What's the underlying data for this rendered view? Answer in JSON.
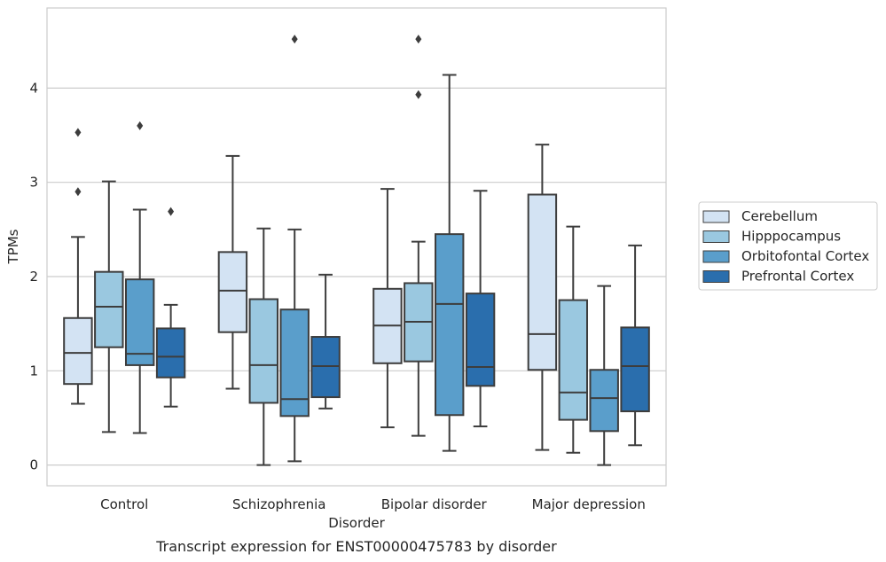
{
  "chart_data": {
    "type": "box",
    "caption": "Transcript expression for ENST00000475783 by disorder",
    "xlabel": "Disorder",
    "ylabel": "TPMs",
    "ylim": [
      -0.22,
      4.85
    ],
    "yticks": [
      "0",
      "1",
      "2",
      "3",
      "4"
    ],
    "grid": true,
    "legend_position": "right",
    "categories": [
      "Control",
      "Schizophrenia",
      "Bipolar disorder",
      "Major depression"
    ],
    "series": [
      {
        "name": "Cerebellum",
        "color": "#d3e3f3",
        "boxes": [
          {
            "whisker_low": 0.65,
            "q1": 0.86,
            "median": 1.19,
            "q3": 1.56,
            "whisker_high": 2.42,
            "outliers": [
              2.9,
              3.53
            ]
          },
          {
            "whisker_low": 0.81,
            "q1": 1.41,
            "median": 1.85,
            "q3": 2.26,
            "whisker_high": 3.28,
            "outliers": []
          },
          {
            "whisker_low": 0.4,
            "q1": 1.08,
            "median": 1.48,
            "q3": 1.87,
            "whisker_high": 2.93,
            "outliers": []
          },
          {
            "whisker_low": 0.16,
            "q1": 1.01,
            "median": 1.39,
            "q3": 2.87,
            "whisker_high": 3.4,
            "outliers": []
          }
        ]
      },
      {
        "name": "Hipppocampus",
        "color": "#9ac8e0",
        "boxes": [
          {
            "whisker_low": 0.35,
            "q1": 1.25,
            "median": 1.68,
            "q3": 2.05,
            "whisker_high": 3.01,
            "outliers": []
          },
          {
            "whisker_low": 0.0,
            "q1": 0.66,
            "median": 1.06,
            "q3": 1.76,
            "whisker_high": 2.51,
            "outliers": []
          },
          {
            "whisker_low": 0.31,
            "q1": 1.1,
            "median": 1.52,
            "q3": 1.93,
            "whisker_high": 2.37,
            "outliers": [
              3.93,
              4.52
            ]
          },
          {
            "whisker_low": 0.13,
            "q1": 0.48,
            "median": 0.77,
            "q3": 1.75,
            "whisker_high": 2.53,
            "outliers": []
          }
        ]
      },
      {
        "name": "Orbitofontal Cortex",
        "color": "#5a9ecb",
        "boxes": [
          {
            "whisker_low": 0.34,
            "q1": 1.06,
            "median": 1.18,
            "q3": 1.97,
            "whisker_high": 2.71,
            "outliers": [
              3.6
            ]
          },
          {
            "whisker_low": 0.04,
            "q1": 0.52,
            "median": 0.7,
            "q3": 1.65,
            "whisker_high": 2.5,
            "outliers": [
              4.52
            ]
          },
          {
            "whisker_low": 0.15,
            "q1": 0.53,
            "median": 1.71,
            "q3": 2.45,
            "whisker_high": 4.14,
            "outliers": []
          },
          {
            "whisker_low": 0.0,
            "q1": 0.36,
            "median": 0.71,
            "q3": 1.01,
            "whisker_high": 1.9,
            "outliers": []
          }
        ]
      },
      {
        "name": "Prefrontal Cortex",
        "color": "#2a6ead",
        "boxes": [
          {
            "whisker_low": 0.62,
            "q1": 0.93,
            "median": 1.15,
            "q3": 1.45,
            "whisker_high": 1.7,
            "outliers": [
              2.69
            ]
          },
          {
            "whisker_low": 0.6,
            "q1": 0.72,
            "median": 1.05,
            "q3": 1.36,
            "whisker_high": 2.02,
            "outliers": []
          },
          {
            "whisker_low": 0.41,
            "q1": 0.84,
            "median": 1.04,
            "q3": 1.82,
            "whisker_high": 2.91,
            "outliers": []
          },
          {
            "whisker_low": 0.21,
            "q1": 0.57,
            "median": 1.05,
            "q3": 1.46,
            "whisker_high": 2.33,
            "outliers": []
          }
        ]
      }
    ]
  }
}
